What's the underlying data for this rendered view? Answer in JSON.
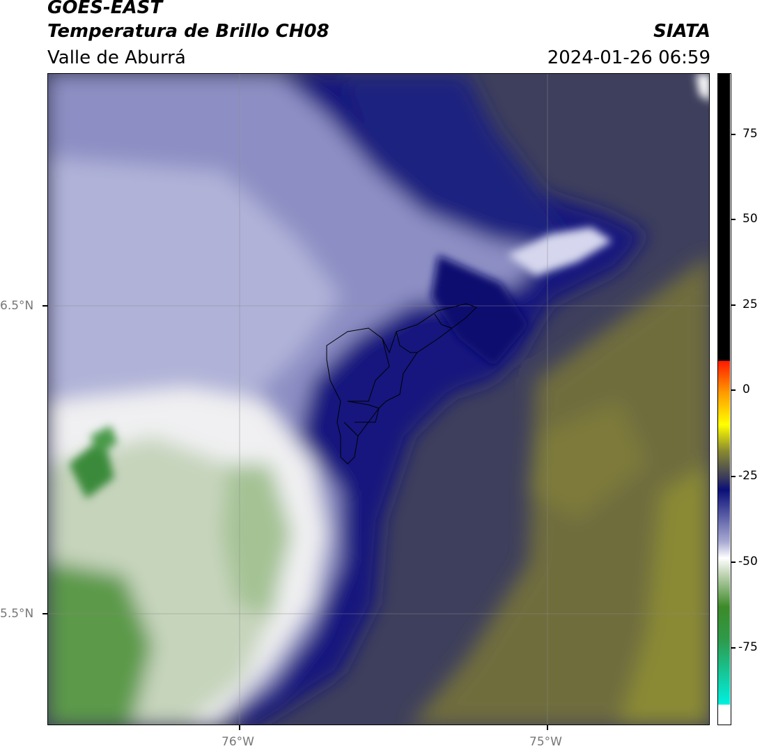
{
  "header": {
    "satellite": "GOES-EAST",
    "product": "Temperatura de Brillo CH08",
    "region": "Valle de Aburrá",
    "agency": "SIATA",
    "datetime": "2024-01-26 06:59"
  },
  "map": {
    "lon_labels": [
      "76°W",
      "75°W"
    ],
    "lat_labels": [
      "6.5°N",
      "5.5°N"
    ]
  },
  "colorbar": {
    "tick_labels": [
      "75",
      "50",
      "25",
      "0",
      "-25",
      "-50",
      "-75"
    ],
    "colors": {
      "cyan": "#00e5d8",
      "green": "#3d8a28",
      "white": "#ffffff",
      "lavender": "#a8aad2",
      "navy": "#0a0f78",
      "slate": "#3c3c5a",
      "olive": "#8a8a30",
      "yellow": "#ffff00",
      "orange": "#ff9900",
      "red": "#ff2200",
      "black": "#000000"
    }
  }
}
